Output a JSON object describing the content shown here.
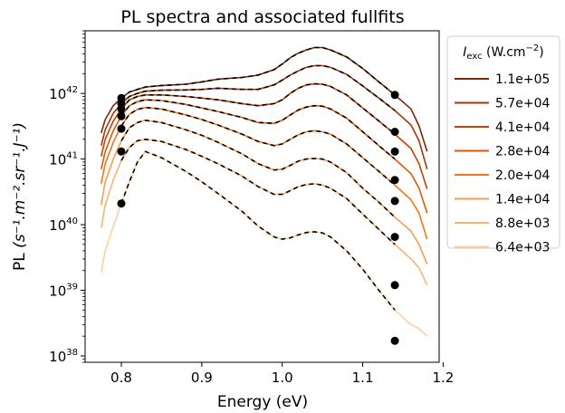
{
  "chart_data": {
    "type": "line",
    "title": "PL spectra and associated fullfits",
    "xlabel": "Energy (eV)",
    "ylabel_main": "PL",
    "ylabel_units": "(s⁻¹.m⁻².sr⁻¹.J⁻¹)",
    "xlim": [
      0.755,
      1.195
    ],
    "ylim": [
      8e+37,
      9e+42
    ],
    "yscale": "log",
    "x_ticks": [
      0.8,
      0.9,
      1.0,
      1.1,
      1.2
    ],
    "x_tick_labels": [
      "0.8",
      "0.9",
      "1.0",
      "1.1",
      "1.2"
    ],
    "y_ticks": [
      1e+38,
      1e+39,
      1e+40,
      1e+41,
      1e+42
    ],
    "y_tick_labels": [
      "10",
      "10",
      "10",
      "10",
      "10"
    ],
    "y_tick_exponents": [
      "38",
      "39",
      "40",
      "41",
      "42"
    ],
    "legend": {
      "title_main": "I",
      "title_sub": "exc",
      "title_units": " (W.cm",
      "title_exp": "−2",
      "title_end": ")",
      "placement": "outside-right"
    },
    "fit_style": "black dashed",
    "marker_energies": [
      0.8,
      1.14
    ],
    "series": [
      {
        "name": "1.1e+05",
        "color": "#7f2704",
        "x": [
          0.775,
          0.78,
          0.79,
          0.8,
          0.81,
          0.82,
          0.83,
          0.85,
          0.88,
          0.9,
          0.92,
          0.95,
          0.97,
          0.99,
          1.0,
          1.01,
          1.02,
          1.03,
          1.04,
          1.05,
          1.06,
          1.08,
          1.1,
          1.12,
          1.14,
          1.16,
          1.17,
          1.18
        ],
        "y": [
          2.5e+41,
          4e+41,
          6.5e+41,
          8.5e+41,
          1.05e+42,
          1.15e+42,
          1.25e+42,
          1.32e+42,
          1.38e+42,
          1.5e+42,
          1.65e+42,
          1.75e+42,
          1.9e+42,
          2.3e+42,
          2.8e+42,
          3.5e+42,
          4.1e+42,
          4.6e+42,
          5e+42,
          5e+42,
          4.6e+42,
          3.6e+42,
          2.4e+42,
          1.5e+42,
          9.5e+41,
          5.8e+41,
          3.2e+41,
          1.3e+41
        ]
      },
      {
        "name": "5.7e+04",
        "color": "#a33603",
        "x": [
          0.775,
          0.78,
          0.79,
          0.8,
          0.81,
          0.82,
          0.83,
          0.85,
          0.88,
          0.9,
          0.92,
          0.95,
          0.97,
          0.99,
          1.0,
          1.01,
          1.02,
          1.03,
          1.04,
          1.05,
          1.06,
          1.08,
          1.1,
          1.12,
          1.14,
          1.16,
          1.17,
          1.18
        ],
        "y": [
          1.6e+41,
          2.8e+41,
          5e+41,
          7e+41,
          9e+41,
          1e+42,
          1.08e+42,
          1.12e+42,
          1.13e+42,
          1.15e+42,
          1.2e+42,
          1.15e+42,
          1.15e+42,
          1.35e+42,
          1.6e+42,
          1.9e+42,
          2.2e+42,
          2.5e+42,
          2.65e+42,
          2.65e+42,
          2.5e+42,
          1.95e+42,
          1.3e+42,
          8.5e+41,
          5.5e+41,
          3.3e+41,
          1.9e+41,
          7e+40
        ]
      },
      {
        "name": "4.1e+04",
        "color": "#c44103",
        "x": [
          0.775,
          0.78,
          0.79,
          0.8,
          0.81,
          0.82,
          0.83,
          0.85,
          0.88,
          0.9,
          0.92,
          0.95,
          0.97,
          0.99,
          1.0,
          1.01,
          1.02,
          1.03,
          1.04,
          1.05,
          1.06,
          1.08,
          1.1,
          1.12,
          1.14,
          1.16,
          1.17,
          1.18
        ],
        "y": [
          1.1e+41,
          2e+41,
          3.8e+41,
          5.8e+41,
          8e+41,
          9e+41,
          9.5e+41,
          9.5e+41,
          9e+41,
          8.5e+41,
          8e+41,
          7e+41,
          6.5e+41,
          7e+41,
          8e+41,
          1e+42,
          1.2e+42,
          1.35e+42,
          1.4e+42,
          1.38e+42,
          1.28e+42,
          9.5e+41,
          6e+41,
          3.8e+41,
          2.4e+41,
          1.45e+41,
          8.5e+40,
          3.5e+40
        ]
      },
      {
        "name": "2.8e+04",
        "color": "#e0590a",
        "x": [
          0.775,
          0.78,
          0.79,
          0.8,
          0.81,
          0.82,
          0.83,
          0.85,
          0.88,
          0.9,
          0.92,
          0.95,
          0.97,
          0.99,
          1.0,
          1.01,
          1.02,
          1.03,
          1.04,
          1.05,
          1.06,
          1.08,
          1.1,
          1.12,
          1.14,
          1.16,
          1.17,
          1.18
        ],
        "y": [
          7e+40,
          1.3e+41,
          2.7e+41,
          4.5e+41,
          6.5e+41,
          7.5e+41,
          8e+41,
          7.8e+41,
          6.8e+41,
          6e+41,
          5.3e+41,
          4.3e+41,
          3.6e+41,
          3.5e+41,
          3.9e+41,
          4.7e+41,
          5.6e+41,
          6.2e+41,
          6.5e+41,
          6.4e+41,
          5.8e+41,
          4.2e+41,
          2.6e+41,
          1.6e+41,
          1e+41,
          6e+40,
          3.6e+40,
          1.5e+40
        ]
      },
      {
        "name": "2.0e+04",
        "color": "#f3761c",
        "x": [
          0.775,
          0.78,
          0.79,
          0.8,
          0.81,
          0.82,
          0.83,
          0.85,
          0.88,
          0.9,
          0.92,
          0.95,
          0.97,
          0.99,
          1.0,
          1.01,
          1.02,
          1.03,
          1.04,
          1.05,
          1.06,
          1.08,
          1.1,
          1.12,
          1.14,
          1.16,
          1.17,
          1.18
        ],
        "y": [
          4.2e+40,
          8.5e+40,
          1.8e+41,
          3.2e+41,
          4.8e+41,
          5.7e+41,
          6.1e+41,
          5.8e+41,
          4.7e+41,
          4e+41,
          3.3e+41,
          2.4e+41,
          1.85e+41,
          1.6e+41,
          1.7e+41,
          2e+41,
          2.35e+41,
          2.6e+41,
          2.7e+41,
          2.6e+41,
          2.4e+41,
          1.7e+41,
          1.05e+41,
          6.5e+40,
          4e+40,
          2.4e+40,
          1.5e+40,
          6e+39
        ]
      },
      {
        "name": "1.4e+04",
        "color": "#f99a4c",
        "x": [
          0.775,
          0.78,
          0.79,
          0.8,
          0.81,
          0.82,
          0.83,
          0.85,
          0.88,
          0.9,
          0.92,
          0.95,
          0.97,
          0.99,
          1.0,
          1.01,
          1.02,
          1.03,
          1.04,
          1.05,
          1.06,
          1.08,
          1.1,
          1.12,
          1.14,
          1.16,
          1.17,
          1.18
        ],
        "y": [
          2e+40,
          4.5e+40,
          1e+41,
          1.9e+41,
          3e+41,
          3.6e+41,
          3.9e+41,
          3.6e+41,
          2.8e+41,
          2.3e+41,
          1.8e+41,
          1.2e+41,
          8.5e+40,
          6.8e+40,
          7e+40,
          8e+40,
          9.3e+40,
          1e+41,
          1.02e+41,
          1e+41,
          9e+40,
          6.2e+40,
          3.6e+40,
          2.2e+40,
          1.3e+40,
          8e+39,
          5e+39,
          2.5e+39
        ]
      },
      {
        "name": "8.8e+03",
        "color": "#fdb26e",
        "x": [
          0.775,
          0.78,
          0.79,
          0.8,
          0.81,
          0.82,
          0.83,
          0.85,
          0.88,
          0.9,
          0.92,
          0.95,
          0.97,
          0.99,
          1.0,
          1.01,
          1.02,
          1.03,
          1.04,
          1.05,
          1.06,
          1.08,
          1.1,
          1.12,
          1.14,
          1.16,
          1.17,
          1.18
        ],
        "y": [
          9e+39,
          2e+40,
          4.8e+40,
          9.5e+40,
          1.5e+41,
          1.9e+41,
          2e+41,
          1.85e+41,
          1.4e+41,
          1.1e+41,
          8.5e+40,
          5.5e+40,
          3.8e+40,
          2.9e+40,
          2.9e+40,
          3.3e+40,
          3.8e+40,
          4.1e+40,
          4.2e+40,
          4e+40,
          3.6e+40,
          2.5e+40,
          1.45e+40,
          8.5e+39,
          5e+39,
          3e+39,
          2.2e+39,
          1.2e+39
        ]
      },
      {
        "name": "6.4e+03",
        "color": "#fdcf9f",
        "x": [
          0.775,
          0.78,
          0.79,
          0.8,
          0.81,
          0.82,
          0.83,
          0.85,
          0.88,
          0.9,
          0.92,
          0.95,
          0.97,
          0.99,
          1.0,
          1.01,
          1.02,
          1.03,
          1.04,
          1.05,
          1.06,
          1.08,
          1.1,
          1.12,
          1.14,
          1.16,
          1.17,
          1.18
        ],
        "y": [
          1.9e+39,
          4e+39,
          9.5e+39,
          2.1e+40,
          4.5e+40,
          9e+40,
          1.3e+41,
          1.05e+41,
          6.5e+40,
          4.5e+40,
          3e+40,
          1.6e+40,
          9.5e+39,
          6.5e+39,
          6e+39,
          6.3e+39,
          7e+39,
          7.6e+39,
          7.8e+39,
          7.5e+39,
          6.5e+39,
          4e+39,
          2.1e+39,
          1e+39,
          5e+38,
          3e+38,
          2.6e+38,
          2e+38
        ]
      }
    ],
    "markers": [
      {
        "x": 0.8,
        "y": 8.5e+41
      },
      {
        "x": 0.8,
        "y": 7e+41
      },
      {
        "x": 0.8,
        "y": 5.8e+41
      },
      {
        "x": 0.8,
        "y": 4.5e+41
      },
      {
        "x": 0.8,
        "y": 2.9e+41
      },
      {
        "x": 0.8,
        "y": 1.3e+41
      },
      {
        "x": 0.8,
        "y": 2.1e+40
      },
      {
        "x": 1.14,
        "y": 9.5e+41
      },
      {
        "x": 1.14,
        "y": 2.6e+41
      },
      {
        "x": 1.14,
        "y": 1.3e+41
      },
      {
        "x": 1.14,
        "y": 4.8e+40
      },
      {
        "x": 1.14,
        "y": 2.3e+40
      },
      {
        "x": 1.14,
        "y": 6.5e+39
      },
      {
        "x": 1.14,
        "y": 1.2e+39
      },
      {
        "x": 1.14,
        "y": 1.7e+38
      }
    ]
  }
}
